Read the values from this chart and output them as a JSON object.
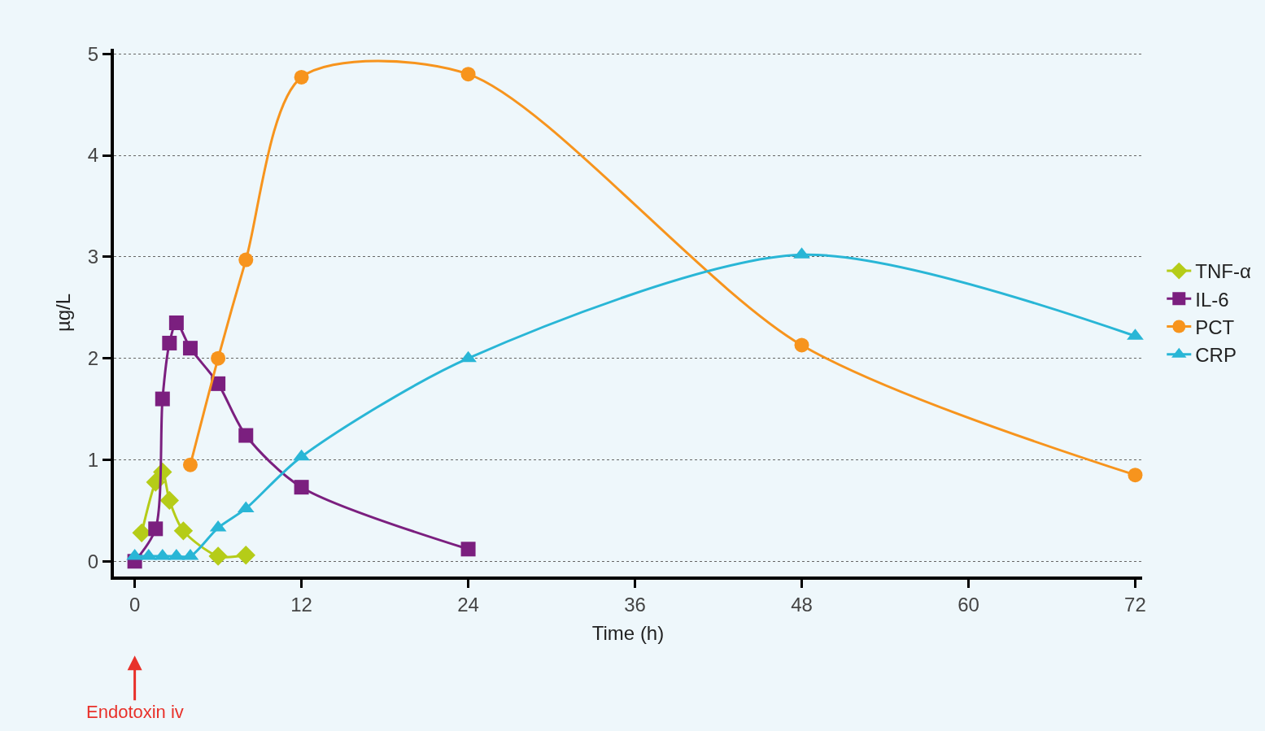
{
  "chart_data": {
    "type": "line",
    "xlabel": "Time (h)",
    "ylabel": "µg/L",
    "xlim": [
      -1.5,
      72.5
    ],
    "ylim": [
      -0.15,
      5.05
    ],
    "xticks": [
      0,
      12,
      24,
      36,
      48,
      60,
      72
    ],
    "yticks": [
      0,
      1,
      2,
      3,
      4,
      5
    ],
    "grid": "y",
    "legend": "right",
    "line_style": "solid",
    "series": [
      {
        "name": "TNF-α",
        "color": "#b5cc18",
        "marker": "diamond",
        "x": [
          0.5,
          1.5,
          2,
          2.5,
          3.5,
          6,
          8
        ],
        "values": [
          0.28,
          0.78,
          0.88,
          0.6,
          0.3,
          0.05,
          0.06
        ]
      },
      {
        "name": "IL-6",
        "color": "#7b1f7f",
        "marker": "square",
        "x": [
          0,
          1.5,
          2,
          2.5,
          3,
          4,
          6,
          8,
          12,
          24
        ],
        "values": [
          0,
          0.32,
          1.6,
          2.15,
          2.35,
          2.1,
          1.75,
          1.24,
          0.73,
          0.12
        ]
      },
      {
        "name": "PCT",
        "color": "#f7941d",
        "marker": "circle",
        "x": [
          4,
          6,
          8,
          12,
          24,
          48,
          72
        ],
        "values": [
          0.95,
          2.0,
          2.97,
          4.77,
          4.8,
          2.13,
          0.85
        ]
      },
      {
        "name": "CRP",
        "color": "#29b6d6",
        "marker": "triangle",
        "x": [
          0,
          1,
          2,
          3,
          4,
          6,
          8,
          12,
          24,
          48,
          72
        ],
        "values": [
          0.05,
          0.05,
          0.05,
          0.05,
          0.05,
          0.33,
          0.52,
          1.03,
          2.0,
          3.02,
          2.22
        ]
      }
    ],
    "annotations": [
      "Endotoxin iv"
    ]
  }
}
